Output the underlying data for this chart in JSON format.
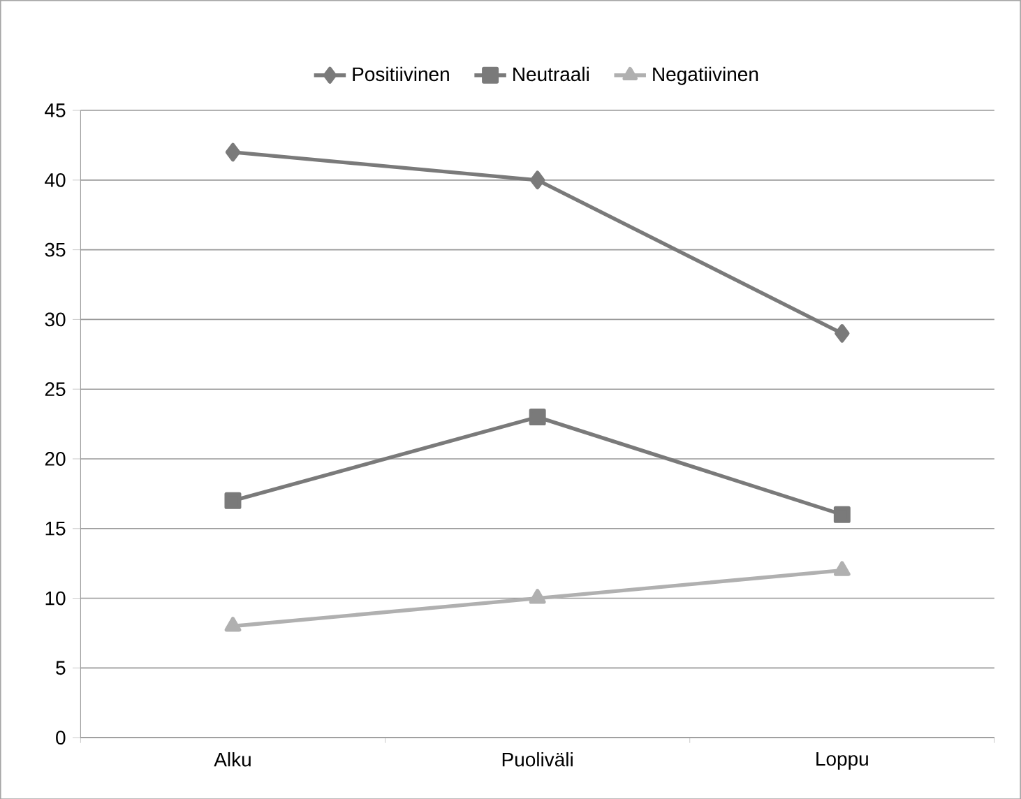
{
  "chart_data": {
    "type": "line",
    "categories": [
      "Alku",
      "Puoliväli",
      "Loppu"
    ],
    "series": [
      {
        "name": "Positiivinen",
        "color": "#7a7a7a",
        "marker": "diamond",
        "values": [
          42,
          40,
          29
        ]
      },
      {
        "name": "Neutraali",
        "color": "#7a7a7a",
        "marker": "square",
        "values": [
          17,
          23,
          16
        ]
      },
      {
        "name": "Negatiivinen",
        "color": "#b0b0b0",
        "marker": "triangle",
        "values": [
          8,
          10,
          12
        ]
      }
    ],
    "ylim": [
      0,
      45
    ],
    "yticks": [
      0,
      5,
      10,
      15,
      20,
      25,
      30,
      35,
      40,
      45
    ],
    "grid": "y",
    "legend": "top",
    "line_style": "solid"
  }
}
